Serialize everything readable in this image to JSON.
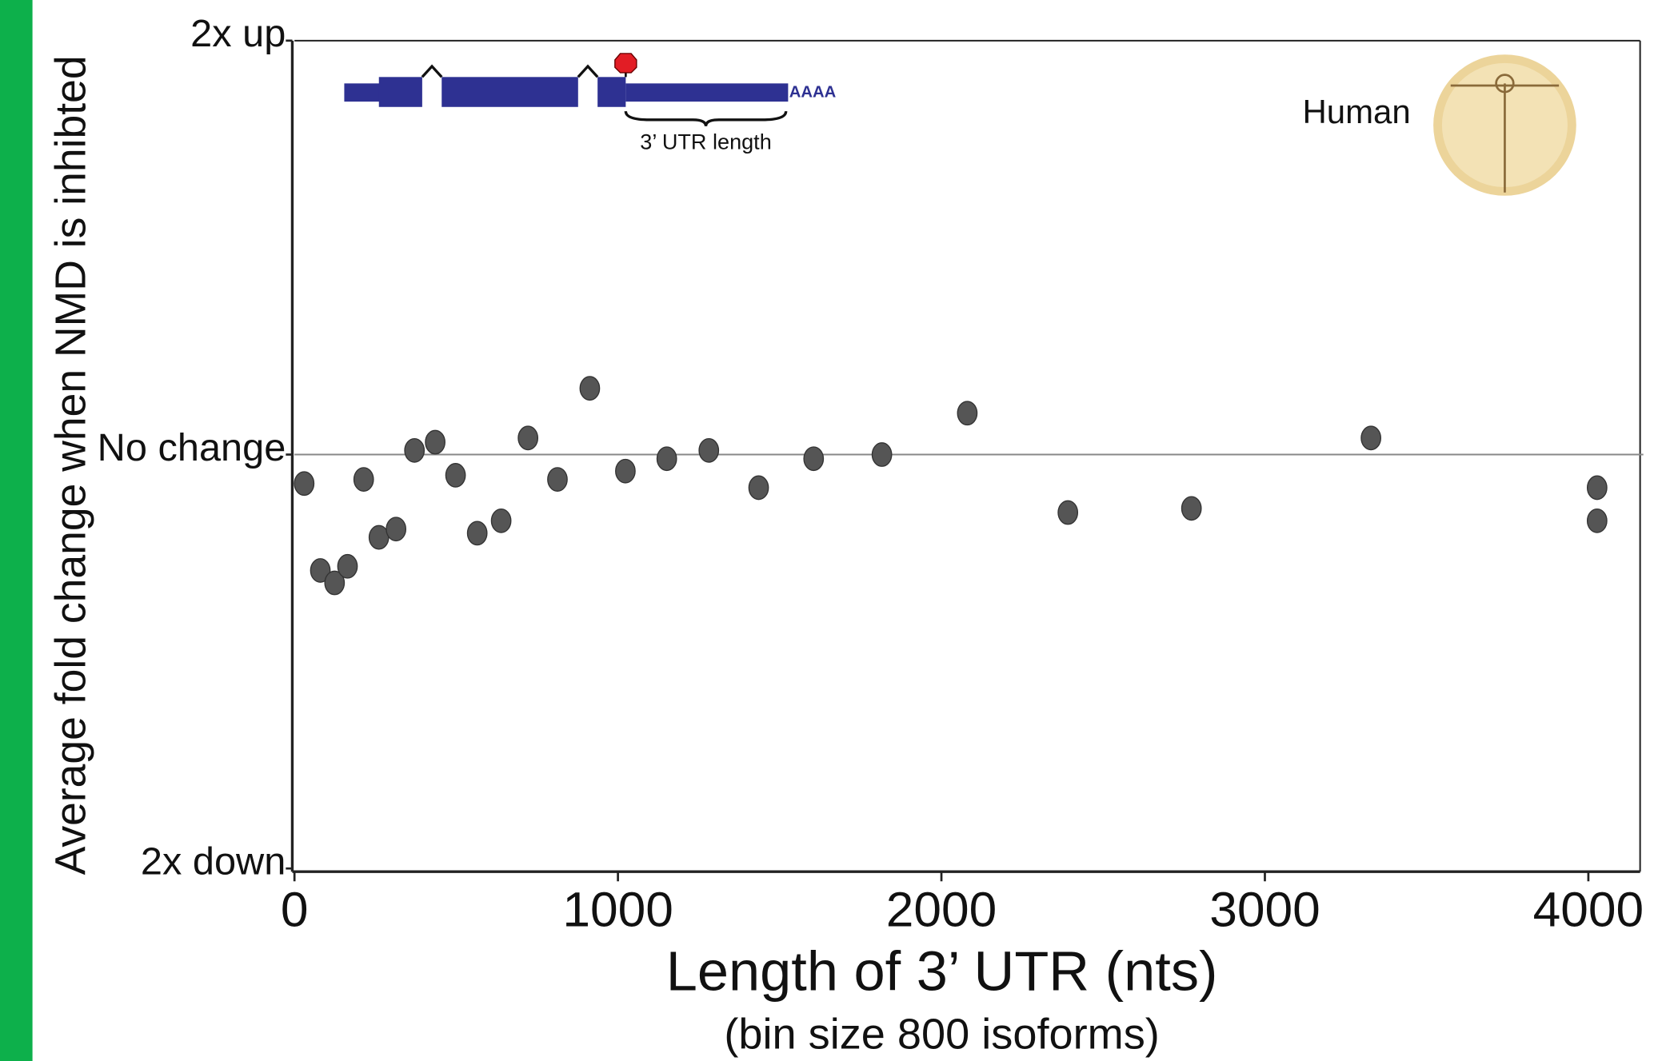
{
  "chart_data": {
    "type": "scatter",
    "x_label": "Length of 3’ UTR (nts)",
    "x_sublabel": "(bin size 800 isoforms)",
    "y_label": "Average fold change when NMD is inhibted",
    "xlim": [
      0,
      4160
    ],
    "xticks": [
      0,
      1000,
      2000,
      3000,
      4000
    ],
    "ylim": [
      -1,
      1
    ],
    "yticks": [
      {
        "value": 1,
        "label": "2x up"
      },
      {
        "value": 0,
        "label": "No change"
      },
      {
        "value": -1,
        "label": "2x down"
      }
    ],
    "reference_line": 0,
    "color": "#555555",
    "x": [
      30,
      80,
      124,
      164,
      214,
      261,
      314,
      371,
      435,
      498,
      565,
      639,
      722,
      813,
      913,
      1023,
      1151,
      1281,
      1435,
      1605,
      1816,
      2080,
      2391,
      2773,
      3328,
      4027,
      4027
    ],
    "values": [
      -0.07,
      -0.28,
      -0.31,
      -0.27,
      -0.06,
      -0.2,
      -0.18,
      0.01,
      0.03,
      -0.05,
      -0.19,
      -0.16,
      0.04,
      -0.06,
      0.16,
      -0.04,
      -0.01,
      0.01,
      -0.08,
      -0.01,
      0,
      0.1,
      -0.14,
      -0.13,
      0.04,
      -0.08,
      -0.16
    ],
    "annotations": {
      "utr": "3’ UTR length",
      "polya": "AAAA",
      "species": "Human"
    }
  }
}
